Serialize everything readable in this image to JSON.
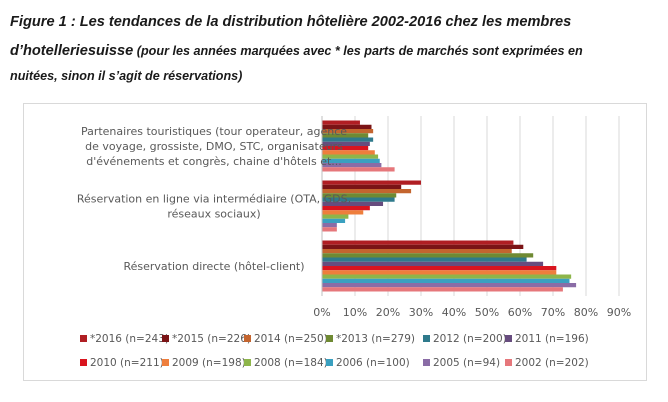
{
  "caption": {
    "line1": "Figure 1 : Les tendances de la distribution hôtelière 2002-2016 chez les membres",
    "line2_bold": "d’hotelleriesuisse",
    "line2_rest": " (pour les années marquées avec * les parts de marchés sont exprimées en",
    "line3": "nuitées, sinon il s’agit de réservations)"
  },
  "chart_data": {
    "type": "bar",
    "orientation": "horizontal",
    "title": "Les tendances de la distribution hôtelière 2002-2016 chez les membres d’hotelleriesuisse",
    "xlabel": "",
    "ylabel": "",
    "xlim": [
      0,
      90
    ],
    "x_ticks": [
      "0%",
      "10%",
      "20%",
      "30%",
      "40%",
      "50%",
      "60%",
      "70%",
      "80%",
      "90%"
    ],
    "grid": true,
    "legend_position": "bottom",
    "categories": [
      {
        "lines": [
          "Partenaires touristiques (tour operateur, agence",
          "de voyage, grossiste, DMO, STC, organisateurs",
          "d'événements et congrès, chaine d'hôtels et..."
        ]
      },
      {
        "lines": [
          "Réservation en ligne via intermédiaire (OTA, GDS,",
          "réseaux sociaux)"
        ]
      },
      {
        "lines": [
          "Réservation directe (hôtel-client)"
        ]
      }
    ],
    "series": [
      {
        "name": "*2016 (n=243)",
        "color": "#B01E23",
        "values": [
          11.5,
          30,
          58
        ]
      },
      {
        "name": "*2015 (n=226)",
        "color": "#7B1416",
        "values": [
          15,
          24,
          61
        ]
      },
      {
        "name": "2014 (n=250)",
        "color": "#C4652F",
        "values": [
          15.5,
          27,
          57.5
        ]
      },
      {
        "name": "*2013 (n=279)",
        "color": "#6F8A33",
        "values": [
          14,
          22.5,
          64
        ]
      },
      {
        "name": "2012 (n=200)",
        "color": "#2F7A8C",
        "values": [
          15.5,
          22,
          62
        ]
      },
      {
        "name": "2011 (n=196)",
        "color": "#674C7E",
        "values": [
          14.5,
          18.5,
          67
        ]
      },
      {
        "name": "2010 (n=211)",
        "color": "#D9141E",
        "values": [
          14,
          14.5,
          71
        ]
      },
      {
        "name": "2009 (n=198)",
        "color": "#EE7E3C",
        "values": [
          16,
          12.5,
          71
        ]
      },
      {
        "name": "2008 (n=184)",
        "color": "#8DB54A",
        "values": [
          17,
          8,
          75.5
        ]
      },
      {
        "name": "2006 (n=100)",
        "color": "#3AA0C0",
        "values": [
          17.5,
          7,
          75
        ]
      },
      {
        "name": "2005 (n=94)",
        "color": "#8A6CA6",
        "values": [
          18,
          4.5,
          77
        ]
      },
      {
        "name": "2002 (n=202)",
        "color": "#E6777B",
        "values": [
          22,
          4.5,
          73
        ]
      }
    ]
  }
}
